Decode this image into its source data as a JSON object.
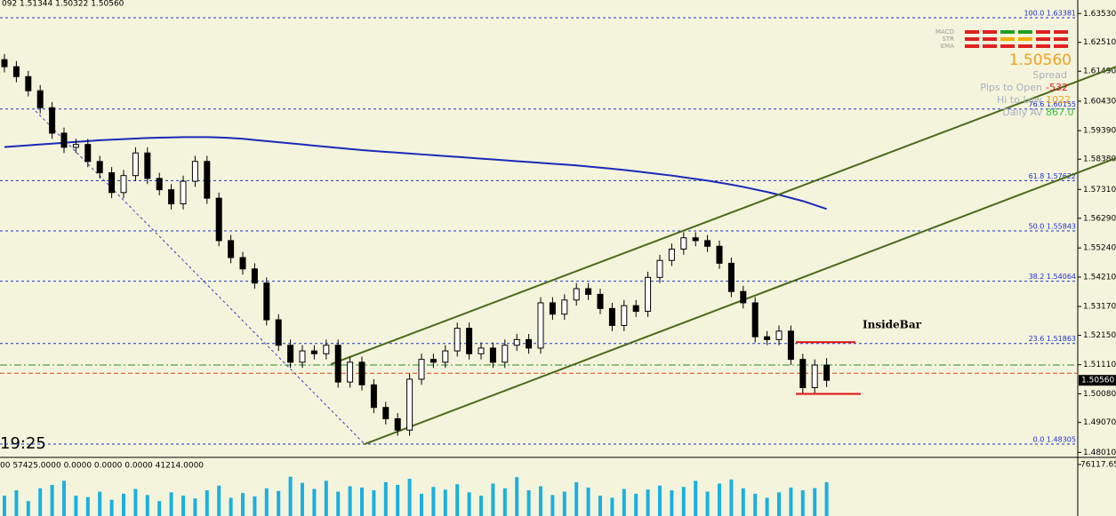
{
  "header": {
    "symbol_line": "092 1.51344 1.50322 1.50560",
    "time": "19:25",
    "indicator_line": "00 57425.0000 0.0000 0.0000 0.0000 41214.0000"
  },
  "chart_data": {
    "type": "candlestick",
    "open": [
      1.619,
      1.6165,
      1.613,
      1.608,
      1.602,
      1.593,
      1.588,
      1.589,
      1.583,
      1.579,
      1.572,
      1.578,
      1.586,
      1.577,
      1.573,
      1.568,
      1.576,
      1.583,
      1.57,
      1.555,
      1.549,
      1.545,
      1.54,
      1.527,
      1.518,
      1.512,
      1.516,
      1.515,
      1.518,
      1.505,
      1.512,
      1.504,
      1.496,
      1.492,
      1.488,
      1.506,
      1.513,
      1.512,
      1.516,
      1.524,
      1.515,
      1.517,
      1.512,
      1.518,
      1.52,
      1.517,
      1.533,
      1.529,
      1.534,
      1.538,
      1.536,
      1.531,
      1.525,
      1.532,
      1.53,
      1.542,
      1.548,
      1.552,
      1.556,
      1.555,
      1.553,
      1.547,
      1.537,
      1.533,
      1.521,
      1.52,
      1.523,
      1.513,
      1.503,
      1.511
    ],
    "high": [
      1.621,
      1.6185,
      1.615,
      1.61,
      1.604,
      1.595,
      1.591,
      1.591,
      1.585,
      1.581,
      1.58,
      1.588,
      1.588,
      1.579,
      1.575,
      1.578,
      1.585,
      1.585,
      1.572,
      1.557,
      1.551,
      1.547,
      1.542,
      1.529,
      1.52,
      1.518,
      1.518,
      1.52,
      1.52,
      1.514,
      1.514,
      1.506,
      1.498,
      1.494,
      1.508,
      1.515,
      1.515,
      1.518,
      1.526,
      1.526,
      1.519,
      1.519,
      1.52,
      1.522,
      1.522,
      1.535,
      1.535,
      1.536,
      1.54,
      1.54,
      1.538,
      1.533,
      1.534,
      1.534,
      1.544,
      1.55,
      1.554,
      1.558,
      1.558,
      1.557,
      1.555,
      1.549,
      1.539,
      1.535,
      1.523,
      1.525,
      1.525,
      1.515,
      1.513,
      1.51344
    ],
    "low": [
      1.6145,
      1.611,
      1.606,
      1.6,
      1.591,
      1.586,
      1.586,
      1.581,
      1.577,
      1.57,
      1.57,
      1.576,
      1.575,
      1.571,
      1.566,
      1.566,
      1.574,
      1.568,
      1.553,
      1.547,
      1.543,
      1.538,
      1.525,
      1.516,
      1.51,
      1.51,
      1.513,
      1.513,
      1.503,
      1.503,
      1.502,
      1.494,
      1.49,
      1.486,
      1.486,
      1.504,
      1.51,
      1.51,
      1.514,
      1.513,
      1.513,
      1.51,
      1.51,
      1.516,
      1.515,
      1.515,
      1.527,
      1.527,
      1.532,
      1.534,
      1.529,
      1.523,
      1.523,
      1.528,
      1.528,
      1.54,
      1.546,
      1.55,
      1.553,
      1.551,
      1.545,
      1.535,
      1.531,
      1.519,
      1.518,
      1.518,
      1.511,
      1.501,
      1.501,
      1.50322
    ],
    "close": [
      1.6165,
      1.613,
      1.608,
      1.602,
      1.593,
      1.588,
      1.589,
      1.583,
      1.579,
      1.572,
      1.578,
      1.586,
      1.577,
      1.573,
      1.568,
      1.576,
      1.583,
      1.57,
      1.555,
      1.549,
      1.545,
      1.54,
      1.527,
      1.518,
      1.512,
      1.516,
      1.515,
      1.518,
      1.505,
      1.512,
      1.504,
      1.496,
      1.492,
      1.488,
      1.506,
      1.513,
      1.512,
      1.516,
      1.524,
      1.515,
      1.517,
      1.512,
      1.518,
      1.52,
      1.517,
      1.533,
      1.529,
      1.534,
      1.538,
      1.536,
      1.531,
      1.525,
      1.532,
      1.53,
      1.542,
      1.548,
      1.552,
      1.556,
      1.555,
      1.553,
      1.547,
      1.537,
      1.533,
      1.521,
      1.52,
      1.523,
      1.513,
      1.503,
      1.511,
      1.5056
    ],
    "ylim": [
      1.47897,
      1.64009
    ],
    "yticks": [
      {
        "value": 1.6353,
        "label": "1.63530"
      },
      {
        "value": 1.6251,
        "label": "1.62510"
      },
      {
        "value": 1.6149,
        "label": "1.61490"
      },
      {
        "value": 1.6043,
        "label": "1.60430"
      },
      {
        "value": 1.5939,
        "label": "1.59390"
      },
      {
        "value": 1.5838,
        "label": "1.58380"
      },
      {
        "value": 1.5731,
        "label": "1.57310"
      },
      {
        "value": 1.5629,
        "label": "1.56290"
      },
      {
        "value": 1.5524,
        "label": "1.55240"
      },
      {
        "value": 1.5421,
        "label": "1.54210"
      },
      {
        "value": 1.5317,
        "label": "1.53170"
      },
      {
        "value": 1.5215,
        "label": "1.52150"
      },
      {
        "value": 1.5111,
        "label": "1.51110"
      },
      {
        "value": 1.5008,
        "label": "1.50080"
      },
      {
        "value": 1.4907,
        "label": "1.49070"
      },
      {
        "value": 1.4801,
        "label": "1.48010"
      }
    ],
    "current_price": {
      "value": 1.5056,
      "label": "1.50560"
    },
    "moving_average": {
      "color": "#1a2ab8",
      "values": [
        1.5881,
        1.5884,
        1.5887,
        1.589,
        1.5893,
        1.5896,
        1.5899,
        1.5902,
        1.5905,
        1.5907,
        1.5909,
        1.5911,
        1.5913,
        1.5914,
        1.5915,
        1.5916,
        1.5916,
        1.5916,
        1.5915,
        1.5913,
        1.591,
        1.5906,
        1.5902,
        1.5898,
        1.5894,
        1.589,
        1.5886,
        1.5882,
        1.5878,
        1.5874,
        1.587,
        1.5867,
        1.5864,
        1.5861,
        1.5858,
        1.5855,
        1.5852,
        1.5849,
        1.5846,
        1.5843,
        1.584,
        1.5837,
        1.5834,
        1.5831,
        1.5828,
        1.5825,
        1.5822,
        1.5819,
        1.5816,
        1.5812,
        1.5808,
        1.5804,
        1.58,
        1.5795,
        1.579,
        1.5785,
        1.578,
        1.5774,
        1.5768,
        1.5762,
        1.5755,
        1.5748,
        1.574,
        1.5731,
        1.5722,
        1.5712,
        1.5701,
        1.569,
        1.5676,
        1.5662
      ]
    },
    "fib_levels": [
      {
        "value": 1.63381,
        "label": "100.0 1.63381"
      },
      {
        "value": 1.60155,
        "label": "76.6 1.60155"
      },
      {
        "value": 1.57622,
        "label": "61.8 1.57622"
      },
      {
        "value": 1.55843,
        "label": "50.0 1.55843"
      },
      {
        "value": 1.54064,
        "label": "38.2 1.54064"
      },
      {
        "value": 1.51863,
        "label": "23.6 1.51863"
      },
      {
        "value": 1.48305,
        "label": "0.0 1.48305"
      }
    ],
    "levels": [
      {
        "value": 1.511,
        "color": "#2a8a2a"
      },
      {
        "value": 1.5081,
        "color": "#e04020"
      }
    ],
    "channel": [
      {
        "color": "#4a6a1a",
        "x": [
          27.4,
          93.3
        ],
        "y": [
          1.5113,
          1.6165
        ]
      },
      {
        "color": "#4a6a1a",
        "x": [
          30.2,
          93.3
        ],
        "y": [
          1.483,
          1.5842
        ]
      }
    ],
    "annotation": {
      "text": "InsideBar",
      "color": "#e01010",
      "high": 1.5191,
      "low": 1.5008
    },
    "volume": {
      "color": "#1ab0e0",
      "ylim": [
        0,
        76117.65
      ],
      "yticks": [
        76117.65
      ],
      "values": [
        30000,
        38000,
        22000,
        41000,
        46000,
        52000,
        30000,
        28000,
        36000,
        24000,
        33000,
        40000,
        31000,
        22000,
        35000,
        30000,
        26000,
        38000,
        45000,
        27000,
        34000,
        29000,
        41000,
        37000,
        58000,
        49000,
        40000,
        52000,
        36000,
        44000,
        42000,
        38000,
        50000,
        46000,
        55000,
        33000,
        43000,
        39000,
        47000,
        35000,
        30000,
        48000,
        41000,
        57425,
        38000,
        44000,
        31000,
        36000,
        50000,
        42000,
        30000,
        27000,
        40000,
        33000,
        39000,
        45000,
        38000,
        43000,
        52000,
        36000,
        48000,
        54000,
        41000,
        33000,
        27000,
        35000,
        42000,
        38000,
        41214,
        50000
      ]
    }
  },
  "dashboard": {
    "labels": [
      "MACD",
      "STR",
      "EMA"
    ],
    "price": "1.50560",
    "rows": [
      {
        "label": "Spread"
      },
      {
        "label": "Pips to Open",
        "value": "-532"
      },
      {
        "label": "Hi to Low",
        "value": "1022"
      },
      {
        "label": "Daily Av",
        "value": "867.0"
      }
    ]
  }
}
